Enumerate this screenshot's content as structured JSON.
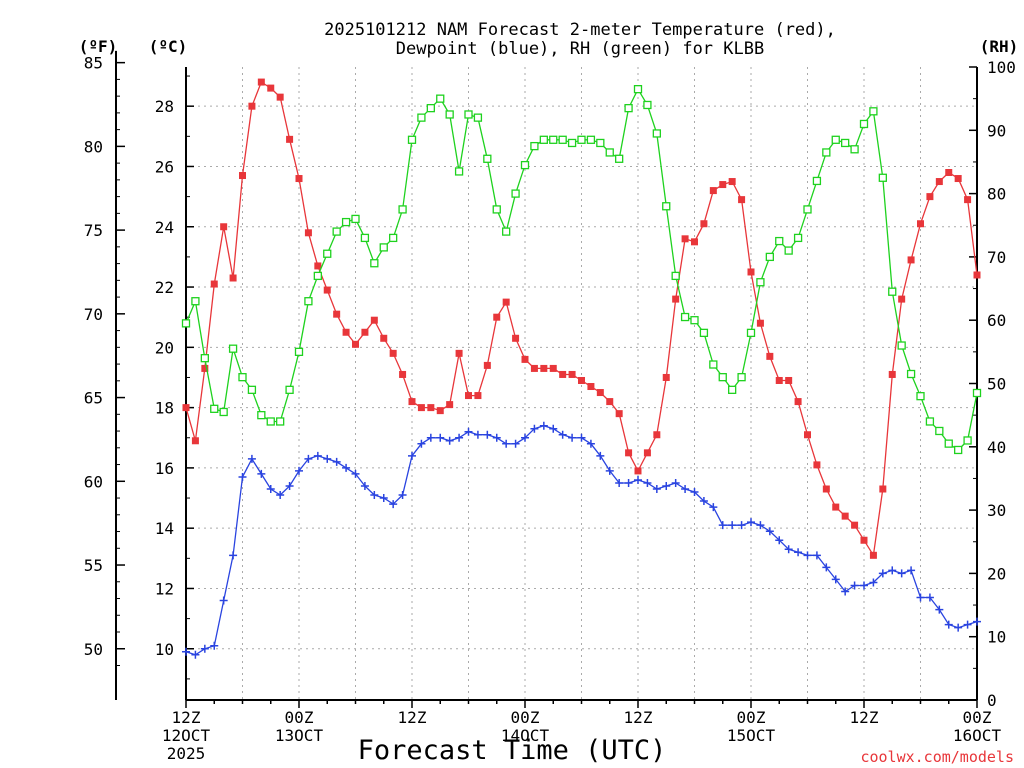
{
  "chart_data": {
    "type": "line",
    "title_line1": "2025101212 NAM Forecast 2-meter Temperature (red),",
    "title_line2": "Dewpoint (blue), RH (green) for KLBB",
    "xlabel": "Forecast Time (UTC)",
    "credit": "coolwx.com/models",
    "axes": {
      "fahrenheit": {
        "label": "(ºF)",
        "ticks": [
          50,
          55,
          60,
          65,
          70,
          75,
          80,
          85
        ]
      },
      "celsius": {
        "label": "(ºC)",
        "ylim": [
          8.3,
          29.3
        ],
        "ticks": [
          10,
          12,
          14,
          16,
          18,
          20,
          22,
          24,
          26,
          28
        ]
      },
      "rh": {
        "label": "(RH)",
        "ylim": [
          0,
          100
        ],
        "ticks": [
          0,
          10,
          20,
          30,
          40,
          50,
          60,
          70,
          80,
          90,
          100
        ]
      },
      "x_hours_range": [
        0,
        84
      ],
      "x_ticks": [
        {
          "hour": 0,
          "lines": [
            "12Z",
            "12OCT",
            "2025"
          ]
        },
        {
          "hour": 12,
          "lines": [
            "00Z",
            "13OCT"
          ]
        },
        {
          "hour": 24,
          "lines": [
            "12Z"
          ]
        },
        {
          "hour": 36,
          "lines": [
            "00Z",
            "14OCT"
          ]
        },
        {
          "hour": 48,
          "lines": [
            "12Z"
          ]
        },
        {
          "hour": 60,
          "lines": [
            "00Z",
            "15OCT"
          ]
        },
        {
          "hour": 72,
          "lines": [
            "12Z"
          ]
        },
        {
          "hour": 84,
          "lines": [
            "00Z",
            "16OCT"
          ]
        }
      ]
    },
    "colors": {
      "temperature": "#e8363a",
      "dewpoint": "#2a44e0",
      "rh": "#1ed21e",
      "grid": "#aaaaaa"
    },
    "series": [
      {
        "key": "temperature",
        "axis": "celsius",
        "marker": "filled-square",
        "x_hours": [
          0,
          1,
          2,
          3,
          4,
          5,
          6,
          7,
          8,
          9,
          10,
          11,
          12,
          13,
          14,
          15,
          16,
          17,
          18,
          19,
          20,
          21,
          22,
          23,
          24,
          25,
          26,
          27,
          28,
          29,
          30,
          31,
          32,
          33,
          34,
          35,
          36,
          37,
          38,
          39,
          40,
          41,
          42,
          43,
          44,
          45,
          46,
          47,
          48,
          49,
          50,
          51,
          52,
          53,
          54,
          55,
          56,
          57,
          58,
          59,
          60,
          61,
          62,
          63,
          64,
          65,
          66,
          67,
          68,
          69,
          70,
          71,
          72,
          73,
          74,
          75,
          76,
          77,
          78,
          79,
          80,
          81,
          82,
          83,
          84
        ],
        "values": [
          18.0,
          16.9,
          19.3,
          22.1,
          24.0,
          22.3,
          25.7,
          28.0,
          28.8,
          28.6,
          28.3,
          26.9,
          25.6,
          23.8,
          22.7,
          21.9,
          21.1,
          20.5,
          20.1,
          20.5,
          20.9,
          20.3,
          19.8,
          19.1,
          18.2,
          18.0,
          18.0,
          17.9,
          18.1,
          19.8,
          18.4,
          18.4,
          19.4,
          21.0,
          21.5,
          20.3,
          19.6,
          19.3,
          19.3,
          19.3,
          19.1,
          19.1,
          18.9,
          18.7,
          18.5,
          18.2,
          17.8,
          16.5,
          15.9,
          16.5,
          17.1,
          19.0,
          21.6,
          23.6,
          23.5,
          24.1,
          25.2,
          25.4,
          25.5,
          24.9,
          22.5,
          20.8,
          19.7,
          18.9,
          18.9,
          18.2,
          17.1,
          16.1,
          15.3,
          14.7,
          14.4,
          14.1,
          13.6,
          13.1,
          15.3,
          19.1,
          21.6,
          22.9,
          24.1,
          25.0,
          25.5,
          25.8,
          25.6,
          24.9,
          22.4
        ]
      },
      {
        "key": "dewpoint",
        "axis": "celsius",
        "marker": "plus",
        "x_hours": [
          0,
          1,
          2,
          3,
          4,
          5,
          6,
          7,
          8,
          9,
          10,
          11,
          12,
          13,
          14,
          15,
          16,
          17,
          18,
          19,
          20,
          21,
          22,
          23,
          24,
          25,
          26,
          27,
          28,
          29,
          30,
          31,
          32,
          33,
          34,
          35,
          36,
          37,
          38,
          39,
          40,
          41,
          42,
          43,
          44,
          45,
          46,
          47,
          48,
          49,
          50,
          51,
          52,
          53,
          54,
          55,
          56,
          57,
          58,
          59,
          60,
          61,
          62,
          63,
          64,
          65,
          66,
          67,
          68,
          69,
          70,
          71,
          72,
          73,
          74,
          75,
          76,
          77,
          78,
          79,
          80,
          81,
          82,
          83,
          84
        ],
        "values": [
          9.9,
          9.8,
          10.0,
          10.1,
          11.6,
          13.1,
          15.7,
          16.3,
          15.8,
          15.3,
          15.1,
          15.4,
          15.9,
          16.3,
          16.4,
          16.3,
          16.2,
          16.0,
          15.8,
          15.4,
          15.1,
          15.0,
          14.8,
          15.1,
          16.4,
          16.8,
          17.0,
          17.0,
          16.9,
          17.0,
          17.2,
          17.1,
          17.1,
          17.0,
          16.8,
          16.8,
          17.0,
          17.3,
          17.4,
          17.3,
          17.1,
          17.0,
          17.0,
          16.8,
          16.4,
          15.9,
          15.5,
          15.5,
          15.6,
          15.5,
          15.3,
          15.4,
          15.5,
          15.3,
          15.2,
          14.9,
          14.7,
          14.1,
          14.1,
          14.1,
          14.2,
          14.1,
          13.9,
          13.6,
          13.3,
          13.2,
          13.1,
          13.1,
          12.7,
          12.3,
          11.9,
          12.1,
          12.1,
          12.2,
          12.5,
          12.6,
          12.5,
          12.6,
          11.7,
          11.7,
          11.3,
          10.8,
          10.7,
          10.8,
          10.9
        ]
      },
      {
        "key": "rh",
        "axis": "rh",
        "marker": "open-square",
        "x_hours": [
          0,
          1,
          2,
          3,
          4,
          5,
          6,
          7,
          8,
          9,
          10,
          11,
          12,
          13,
          14,
          15,
          16,
          17,
          18,
          19,
          20,
          21,
          22,
          23,
          24,
          25,
          26,
          27,
          28,
          29,
          30,
          31,
          32,
          33,
          34,
          35,
          36,
          37,
          38,
          39,
          40,
          41,
          42,
          43,
          44,
          45,
          46,
          47,
          48,
          49,
          50,
          51,
          52,
          53,
          54,
          55,
          56,
          57,
          58,
          59,
          60,
          61,
          62,
          63,
          64,
          65,
          66,
          67,
          68,
          69,
          70,
          71,
          72,
          73,
          74,
          75,
          76,
          77,
          78,
          79,
          80,
          81,
          82,
          83,
          84
        ],
        "values": [
          59.5,
          63.0,
          54.0,
          46.0,
          45.5,
          55.5,
          51.0,
          49.0,
          45.0,
          44.0,
          44.0,
          49.0,
          55.0,
          63.0,
          67.0,
          70.5,
          74.0,
          75.5,
          76.0,
          73.0,
          69.0,
          71.5,
          73.0,
          77.5,
          88.5,
          92.0,
          93.5,
          95.0,
          92.5,
          83.5,
          92.5,
          92.0,
          85.5,
          77.5,
          74.0,
          80.0,
          84.5,
          87.5,
          88.5,
          88.5,
          88.5,
          88.0,
          88.5,
          88.5,
          88.0,
          86.5,
          85.5,
          93.5,
          96.5,
          94.0,
          89.5,
          78.0,
          67.0,
          60.5,
          60.0,
          58.0,
          53.0,
          51.0,
          49.0,
          51.0,
          58.0,
          66.0,
          70.0,
          72.5,
          71.0,
          73.0,
          77.5,
          82.0,
          86.5,
          88.5,
          88.0,
          87.0,
          91.0,
          93.0,
          82.5,
          64.5,
          56.0,
          51.5,
          48.0,
          44.0,
          42.5,
          40.5,
          39.5,
          41.0,
          48.5
        ]
      }
    ]
  }
}
